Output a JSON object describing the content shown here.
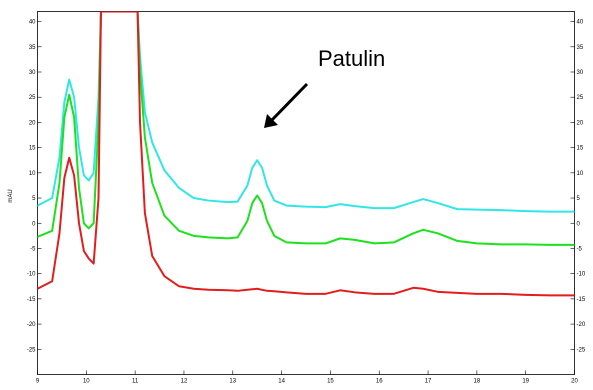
{
  "chart_data": {
    "type": "line",
    "ylabel": "mAU",
    "xlim": [
      9,
      20
    ],
    "ylim": [
      -30,
      42
    ],
    "x_ticks": [
      "9",
      "10",
      "11",
      "12",
      "13",
      "14",
      "15",
      "16",
      "17",
      "18",
      "19",
      "20"
    ],
    "y_ticks": [
      "-25",
      "-20",
      "-15",
      "-10",
      "-5",
      "0",
      "5",
      "10",
      "15",
      "20",
      "25",
      "30",
      "35",
      "40"
    ],
    "series": [
      {
        "color": "#33e6e6",
        "x": [
          9.0,
          9.3,
          9.45,
          9.55,
          9.65,
          9.75,
          9.85,
          9.95,
          10.05,
          10.15,
          10.25,
          10.3,
          10.35,
          11.05,
          11.1,
          11.2,
          11.35,
          11.6,
          11.9,
          12.2,
          12.5,
          12.9,
          13.1,
          13.3,
          13.4,
          13.5,
          13.6,
          13.7,
          13.85,
          14.1,
          14.5,
          14.9,
          15.2,
          15.5,
          15.9,
          16.3,
          16.7,
          16.9,
          17.2,
          17.6,
          18.0,
          18.5,
          19.0,
          19.5,
          20.0
        ],
        "y": [
          3.5,
          5.0,
          13.0,
          24.0,
          28.5,
          25.0,
          15.0,
          9.5,
          8.5,
          10.0,
          25.0,
          42.0,
          42.0,
          42.0,
          33.0,
          22.0,
          16.0,
          10.5,
          7.0,
          5.0,
          4.5,
          4.2,
          4.3,
          7.5,
          11.0,
          12.5,
          11.0,
          7.5,
          4.5,
          3.5,
          3.3,
          3.2,
          3.8,
          3.4,
          3.0,
          3.0,
          4.2,
          4.8,
          4.0,
          2.8,
          2.7,
          2.6,
          2.4,
          2.3,
          2.3
        ]
      },
      {
        "color": "#1ee11e",
        "x": [
          9.0,
          9.3,
          9.45,
          9.55,
          9.65,
          9.75,
          9.85,
          9.95,
          10.05,
          10.15,
          10.25,
          10.3,
          10.35,
          11.05,
          11.1,
          11.2,
          11.35,
          11.6,
          11.9,
          12.2,
          12.5,
          12.9,
          13.1,
          13.3,
          13.4,
          13.5,
          13.6,
          13.7,
          13.85,
          14.1,
          14.5,
          14.9,
          15.2,
          15.5,
          15.9,
          16.3,
          16.7,
          16.9,
          17.2,
          17.6,
          18.0,
          18.5,
          19.0,
          19.5,
          20.0
        ],
        "y": [
          -2.7,
          -1.5,
          8.0,
          21.0,
          25.5,
          21.0,
          7.0,
          0.0,
          -1.0,
          0.0,
          20.0,
          42.0,
          42.0,
          42.0,
          30.0,
          17.0,
          8.0,
          1.5,
          -1.5,
          -2.5,
          -2.8,
          -3.0,
          -2.8,
          0.5,
          4.0,
          5.5,
          4.0,
          0.5,
          -2.5,
          -3.8,
          -4.0,
          -4.0,
          -3.0,
          -3.3,
          -4.0,
          -3.8,
          -2.0,
          -1.3,
          -2.0,
          -3.5,
          -4.0,
          -4.2,
          -4.2,
          -4.3,
          -4.3
        ]
      },
      {
        "color": "#e11e1e",
        "x": [
          9.0,
          9.3,
          9.45,
          9.55,
          9.65,
          9.75,
          9.85,
          9.95,
          10.05,
          10.15,
          10.25,
          10.3,
          10.35,
          11.05,
          11.1,
          11.2,
          11.35,
          11.6,
          11.9,
          12.2,
          12.5,
          12.9,
          13.1,
          13.3,
          13.4,
          13.5,
          13.6,
          13.7,
          13.85,
          14.1,
          14.5,
          14.9,
          15.2,
          15.5,
          15.9,
          16.3,
          16.7,
          16.9,
          17.2,
          17.6,
          18.0,
          18.5,
          19.0,
          19.5,
          20.0
        ],
        "y": [
          -13.0,
          -11.5,
          -2.0,
          9.0,
          13.0,
          9.5,
          0.0,
          -5.5,
          -7.0,
          -8.0,
          5.0,
          42.0,
          42.0,
          42.0,
          20.0,
          2.0,
          -6.5,
          -10.5,
          -12.5,
          -13.0,
          -13.2,
          -13.3,
          -13.4,
          -13.2,
          -13.1,
          -13.0,
          -13.2,
          -13.4,
          -13.5,
          -13.7,
          -14.0,
          -14.0,
          -13.3,
          -13.7,
          -14.0,
          -14.0,
          -12.8,
          -13.0,
          -13.6,
          -13.8,
          -14.0,
          -14.0,
          -14.2,
          -14.3,
          -14.3
        ]
      }
    ],
    "annotations": [
      {
        "text": "Patulin",
        "x": 13.4,
        "y": 13.5
      }
    ]
  }
}
